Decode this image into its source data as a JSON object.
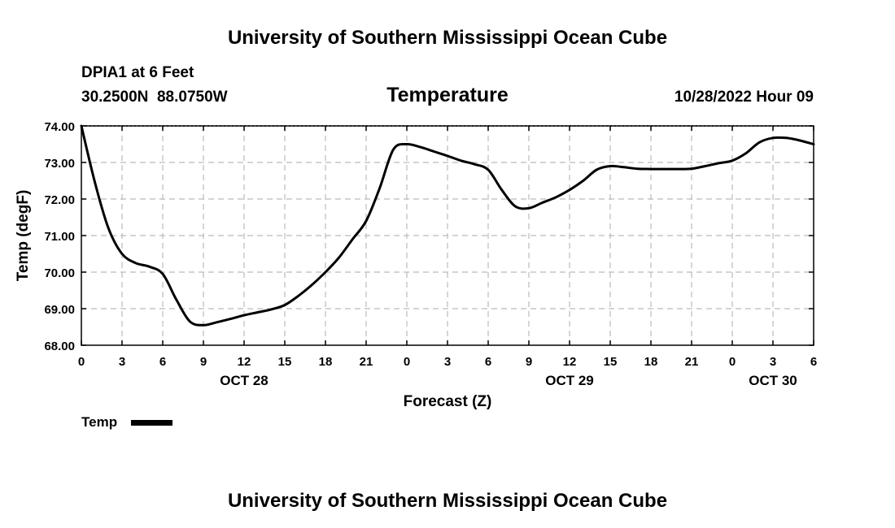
{
  "header": {
    "title": "University of Southern Mississippi Ocean Cube",
    "station": "DPIA1 at 6 Feet",
    "coords": "30.2500N  88.0750W",
    "variable": "Temperature",
    "datetime": "10/28/2022 Hour 09"
  },
  "footer": {
    "title": "University of Southern Mississippi Ocean Cube"
  },
  "legend": {
    "label": "Temp"
  },
  "colors": {
    "line": "#000000",
    "grid": "#bbbbbb",
    "background": "#ffffff"
  },
  "chart_data": {
    "type": "line",
    "title": "Temperature",
    "xlabel": "Forecast (Z)",
    "ylabel": "Temp (degF)",
    "ylim": [
      68,
      74
    ],
    "xlim": [
      0,
      54
    ],
    "yticks": [
      "68.00",
      "69.00",
      "70.00",
      "71.00",
      "72.00",
      "73.00",
      "74.00"
    ],
    "xticks": [
      "0",
      "3",
      "6",
      "9",
      "12",
      "15",
      "18",
      "21",
      "0",
      "3",
      "6",
      "9",
      "12",
      "15",
      "18",
      "21",
      "0",
      "3",
      "6"
    ],
    "date_labels": [
      {
        "label": "OCT 28",
        "hour": 12
      },
      {
        "label": "OCT 29",
        "hour": 36
      },
      {
        "label": "OCT 30",
        "hour": 51
      }
    ],
    "grid": true,
    "series": [
      {
        "name": "Temp",
        "x": [
          0,
          1,
          2,
          3,
          4,
          5,
          6,
          7,
          8,
          9,
          10,
          11,
          12,
          13,
          14,
          15,
          16,
          17,
          18,
          19,
          20,
          21,
          22,
          23,
          24,
          25,
          26,
          27,
          28,
          29,
          30,
          31,
          32,
          33,
          34,
          35,
          36,
          37,
          38,
          39,
          40,
          41,
          42,
          43,
          44,
          45,
          46,
          47,
          48,
          49,
          50,
          51,
          52,
          53,
          54
        ],
        "values": [
          74.0,
          72.45,
          71.2,
          70.5,
          70.25,
          70.15,
          69.95,
          69.25,
          68.65,
          68.55,
          68.63,
          68.72,
          68.82,
          68.9,
          68.98,
          69.1,
          69.35,
          69.65,
          70.0,
          70.4,
          70.9,
          71.4,
          72.3,
          73.35,
          73.5,
          73.42,
          73.3,
          73.18,
          73.05,
          72.95,
          72.8,
          72.25,
          71.8,
          71.75,
          71.9,
          72.05,
          72.25,
          72.5,
          72.8,
          72.9,
          72.87,
          72.83,
          72.82,
          72.82,
          72.82,
          72.83,
          72.9,
          72.98,
          73.05,
          73.25,
          73.55,
          73.67,
          73.67,
          73.6,
          73.5
        ]
      }
    ]
  }
}
